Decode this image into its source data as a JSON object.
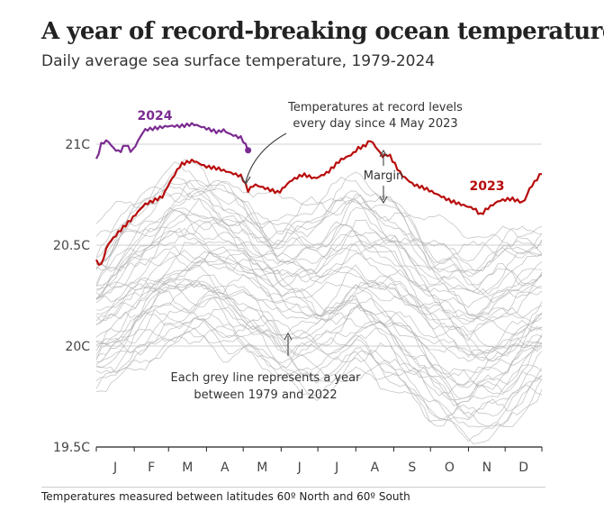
{
  "title": "A year of record-breaking ocean temperatures",
  "subtitle": "Daily average sea surface temperature, 1979-2024",
  "footnote": "Temperatures measured between latitudes 60º North and 60º South",
  "colors": {
    "y2024": "#7b2c91",
    "y2023": "#b80c0c",
    "historical": "#b3b3b3",
    "grid": "#d0d0d0",
    "axis": "#222222"
  },
  "chart_data": {
    "type": "line",
    "title": "A year of record-breaking ocean temperatures",
    "subtitle": "Daily average sea surface temperature, 1979-2024",
    "xlabel": "",
    "ylabel": "",
    "x_unit": "day of year",
    "xlim": [
      1,
      365
    ],
    "ylim": [
      19.5,
      21.2
    ],
    "y_ticks": [
      {
        "value": 21.0,
        "label": "21C"
      },
      {
        "value": 20.5,
        "label": "20.5C"
      },
      {
        "value": 20.0,
        "label": "20C"
      },
      {
        "value": 19.5,
        "label": "19.5C"
      }
    ],
    "x_ticks": [
      "J",
      "F",
      "M",
      "A",
      "M",
      "J",
      "J",
      "A",
      "S",
      "O",
      "N",
      "D"
    ],
    "grid": true,
    "series": [
      {
        "name": "2024",
        "x": [
          1,
          5,
          10,
          15,
          20,
          25,
          30,
          40,
          50,
          60,
          70,
          80,
          90,
          100,
          105,
          110,
          115,
          120,
          125
        ],
        "y": [
          20.92,
          21.0,
          21.02,
          20.98,
          20.96,
          21.0,
          20.96,
          21.07,
          21.08,
          21.09,
          21.09,
          21.1,
          21.08,
          21.06,
          21.07,
          21.05,
          21.04,
          21.03,
          20.97
        ]
      },
      {
        "name": "2023",
        "x": [
          1,
          5,
          10,
          20,
          30,
          40,
          55,
          60,
          70,
          80,
          90,
          100,
          110,
          120,
          125,
          130,
          140,
          150,
          160,
          170,
          180,
          190,
          200,
          210,
          215,
          220,
          225,
          230,
          235,
          240,
          250,
          260,
          270,
          280,
          290,
          300,
          310,
          315,
          320,
          330,
          340,
          350,
          355,
          360,
          365
        ],
        "y": [
          20.42,
          20.4,
          20.5,
          20.57,
          20.63,
          20.7,
          20.74,
          20.8,
          20.9,
          20.92,
          20.89,
          20.88,
          20.86,
          20.84,
          20.77,
          20.8,
          20.78,
          20.76,
          20.82,
          20.85,
          20.83,
          20.86,
          20.92,
          20.95,
          20.98,
          20.99,
          21.02,
          20.98,
          20.94,
          20.95,
          20.85,
          20.8,
          20.78,
          20.75,
          20.72,
          20.7,
          20.68,
          20.65,
          20.68,
          20.72,
          20.73,
          20.71,
          20.78,
          20.82,
          20.86
        ]
      }
    ],
    "historical_band": {
      "years": "1979-2022",
      "x": [
        1,
        31,
        60,
        91,
        121,
        152,
        182,
        213,
        244,
        274,
        305,
        335,
        365
      ],
      "upper": [
        20.55,
        20.7,
        20.85,
        20.85,
        20.75,
        20.65,
        20.72,
        20.82,
        20.72,
        20.58,
        20.5,
        20.55,
        20.58
      ],
      "lower": [
        19.78,
        19.92,
        20.02,
        20.02,
        19.95,
        19.85,
        19.78,
        19.88,
        19.8,
        19.62,
        19.55,
        19.62,
        19.78
      ]
    },
    "annotations": {
      "record": [
        "Temperatures at record levels",
        "every day since 4 May 2023"
      ],
      "margin": "Margin",
      "grey": [
        "Each grey line represents a year",
        "between 1979 and 2022"
      ],
      "label_2024": "2024",
      "label_2023": "2023"
    }
  }
}
